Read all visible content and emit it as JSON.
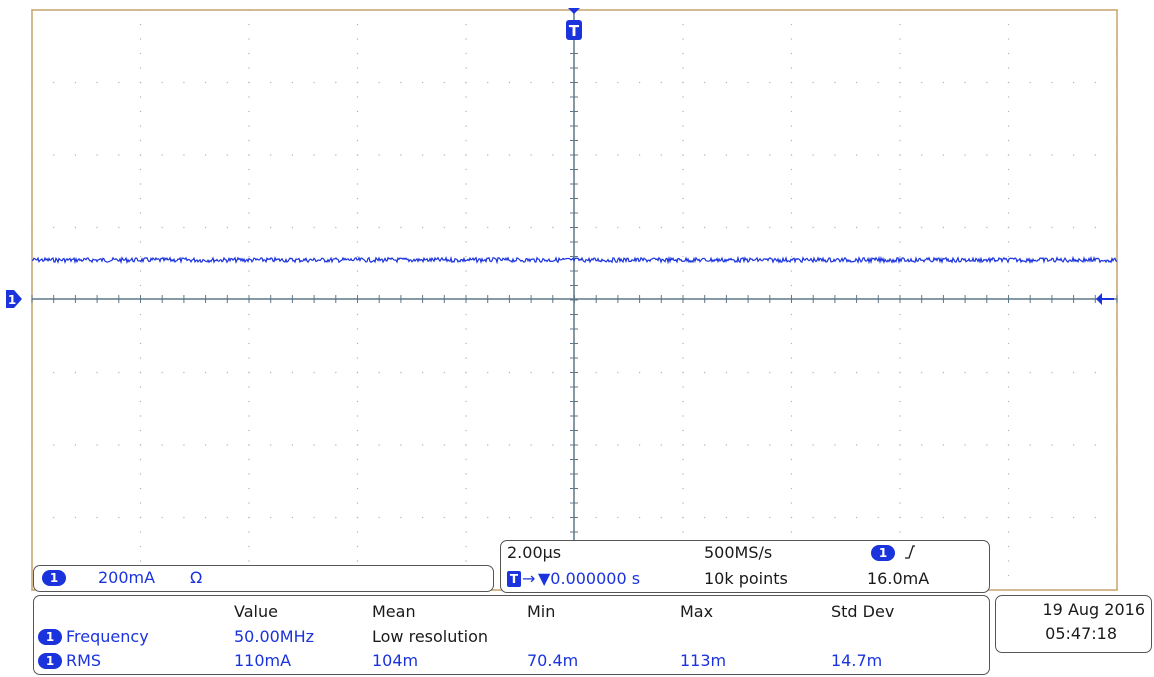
{
  "trigger_marker": "T",
  "channel_marker": "1",
  "channel_info": {
    "channel": "1",
    "scale": "200mA",
    "coupling_symbol": "Ω"
  },
  "timebase": {
    "time_per_div": "2.00µs",
    "sample_rate": "500MS/s",
    "trigger_channel": "1",
    "trigger_slope_icon": "rising-edge-icon",
    "trigger_marker": "T",
    "trigger_position": "▼0.000000 s",
    "record_length": "10k points",
    "trigger_level": "16.0mA"
  },
  "measurements": {
    "headers": [
      "Value",
      "Mean",
      "Min",
      "Max",
      "Std Dev"
    ],
    "rows": [
      {
        "channel": "1",
        "name": "Frequency",
        "value": "50.00MHz",
        "mean": "Low resolution",
        "min": "",
        "max": "",
        "std_dev": ""
      },
      {
        "channel": "1",
        "name": "RMS",
        "value": "110mA",
        "mean": "104m",
        "min": "70.4m",
        "max": "113m",
        "std_dev": "14.7m"
      }
    ]
  },
  "datetime": {
    "date": "19 Aug 2016",
    "time": "05:47:18"
  },
  "colors": {
    "trace": "#1a33dd",
    "grid_frame": "#c8a46a",
    "center_axes": "#5f7888",
    "grid_dots": "#b0b0b0"
  }
}
